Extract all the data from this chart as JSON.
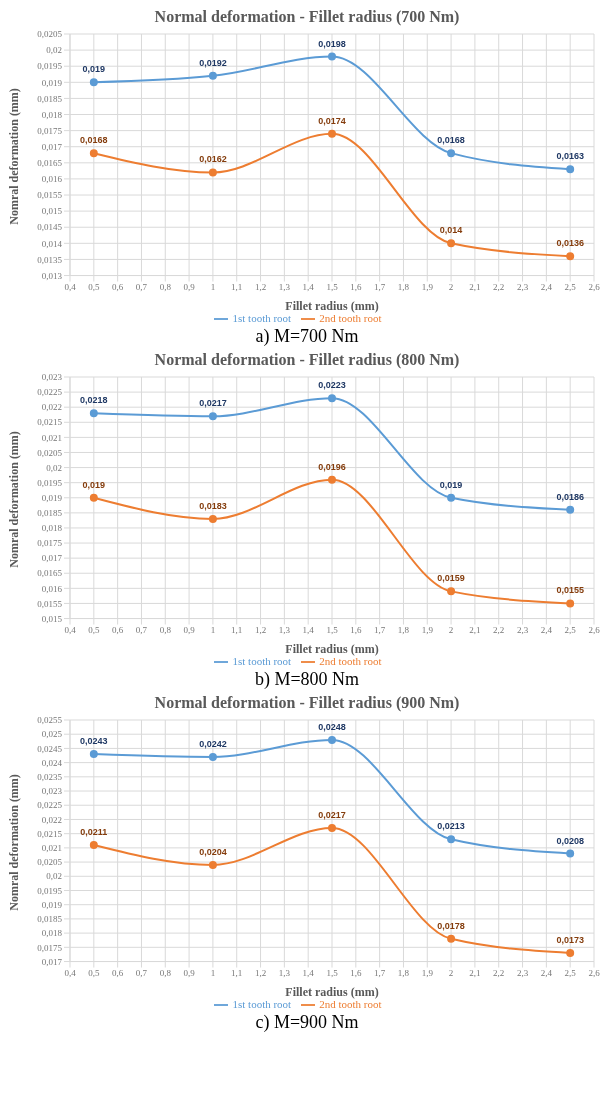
{
  "chart_data": [
    {
      "type": "line",
      "title": "Normal deformation - Fillet radius (700 Nm)",
      "xlabel": "Fillet radius (mm)",
      "ylabel": "Nomral deformation (mm)",
      "annotations": [
        "a) M=700 Nm"
      ],
      "x": [
        0.5,
        1,
        1.5,
        2,
        2.5
      ],
      "series": [
        {
          "name": "1st tooth root",
          "color": "#5b9bd5",
          "values": [
            0.019,
            0.0192,
            0.0198,
            0.0168,
            0.0163
          ],
          "value_labels": [
            "0,019",
            "0,0192",
            "0,0198",
            "0,0168",
            "0,0163"
          ]
        },
        {
          "name": "2nd tooth root",
          "color": "#ed7d31",
          "values": [
            0.0168,
            0.0162,
            0.0174,
            0.014,
            0.0136
          ],
          "value_labels": [
            "0,0168",
            "0,0162",
            "0,0174",
            "0,014",
            "0,0136"
          ]
        }
      ],
      "xlim": [
        0.4,
        2.6
      ],
      "xticks": [
        {
          "value": 0.4,
          "label": "0,4"
        },
        {
          "value": 0.5,
          "label": "0,5"
        },
        {
          "value": 0.6,
          "label": "0,6"
        },
        {
          "value": 0.7,
          "label": "0,7"
        },
        {
          "value": 0.8,
          "label": "0,8"
        },
        {
          "value": 0.9,
          "label": "0,9"
        },
        {
          "value": 1,
          "label": "1"
        },
        {
          "value": 1.1,
          "label": "1,1"
        },
        {
          "value": 1.2,
          "label": "1,2"
        },
        {
          "value": 1.3,
          "label": "1,3"
        },
        {
          "value": 1.4,
          "label": "1,4"
        },
        {
          "value": 1.5,
          "label": "1,5"
        },
        {
          "value": 1.6,
          "label": "1,6"
        },
        {
          "value": 1.7,
          "label": "1,7"
        },
        {
          "value": 1.8,
          "label": "1,8"
        },
        {
          "value": 1.9,
          "label": "1,9"
        },
        {
          "value": 2,
          "label": "2"
        },
        {
          "value": 2.1,
          "label": "2,1"
        },
        {
          "value": 2.2,
          "label": "2,2"
        },
        {
          "value": 2.3,
          "label": "2,3"
        },
        {
          "value": 2.4,
          "label": "2,4"
        },
        {
          "value": 2.5,
          "label": "2,5"
        },
        {
          "value": 2.6,
          "label": "2,6"
        }
      ],
      "ylim": [
        0.013,
        0.0205
      ],
      "yticks": [
        {
          "value": 0.013,
          "label": "0,013"
        },
        {
          "value": 0.0135,
          "label": "0,0135"
        },
        {
          "value": 0.014,
          "label": "0,014"
        },
        {
          "value": 0.0145,
          "label": "0,0145"
        },
        {
          "value": 0.015,
          "label": "0,015"
        },
        {
          "value": 0.0155,
          "label": "0,0155"
        },
        {
          "value": 0.016,
          "label": "0,016"
        },
        {
          "value": 0.0165,
          "label": "0,0165"
        },
        {
          "value": 0.017,
          "label": "0,017"
        },
        {
          "value": 0.0175,
          "label": "0,0175"
        },
        {
          "value": 0.018,
          "label": "0,018"
        },
        {
          "value": 0.0185,
          "label": "0,0185"
        },
        {
          "value": 0.019,
          "label": "0,019"
        },
        {
          "value": 0.0195,
          "label": "0,0195"
        },
        {
          "value": 0.02,
          "label": "0,02"
        },
        {
          "value": 0.0205,
          "label": "0,0205"
        }
      ],
      "grid": true,
      "legend": "bottom",
      "marker": "circle",
      "line_style": "solid"
    },
    {
      "type": "line",
      "title": "Normal deformation - Fillet radius (800 Nm)",
      "xlabel": "Fillet radius (mm)",
      "ylabel": "Nomral deformation (mm)",
      "annotations": [
        "b) M=800 Nm"
      ],
      "x": [
        0.5,
        1,
        1.5,
        2,
        2.5
      ],
      "series": [
        {
          "name": "1st tooth root",
          "color": "#5b9bd5",
          "values": [
            0.0218,
            0.0217,
            0.0223,
            0.019,
            0.0186
          ],
          "value_labels": [
            "0,0218",
            "0,0217",
            "0,0223",
            "0,019",
            "0,0186"
          ]
        },
        {
          "name": "2nd tooth root",
          "color": "#ed7d31",
          "values": [
            0.019,
            0.0183,
            0.0196,
            0.0159,
            0.0155
          ],
          "value_labels": [
            "0,019",
            "0,0183",
            "0,0196",
            "0,0159",
            "0,0155"
          ]
        }
      ],
      "xlim": [
        0.4,
        2.6
      ],
      "xticks": [
        {
          "value": 0.4,
          "label": "0,4"
        },
        {
          "value": 0.5,
          "label": "0,5"
        },
        {
          "value": 0.6,
          "label": "0,6"
        },
        {
          "value": 0.7,
          "label": "0,7"
        },
        {
          "value": 0.8,
          "label": "0,8"
        },
        {
          "value": 0.9,
          "label": "0,9"
        },
        {
          "value": 1,
          "label": "1"
        },
        {
          "value": 1.1,
          "label": "1,1"
        },
        {
          "value": 1.2,
          "label": "1,2"
        },
        {
          "value": 1.3,
          "label": "1,3"
        },
        {
          "value": 1.4,
          "label": "1,4"
        },
        {
          "value": 1.5,
          "label": "1,5"
        },
        {
          "value": 1.6,
          "label": "1,6"
        },
        {
          "value": 1.7,
          "label": "1,7"
        },
        {
          "value": 1.8,
          "label": "1,8"
        },
        {
          "value": 1.9,
          "label": "1,9"
        },
        {
          "value": 2,
          "label": "2"
        },
        {
          "value": 2.1,
          "label": "2,1"
        },
        {
          "value": 2.2,
          "label": "2,2"
        },
        {
          "value": 2.3,
          "label": "2,3"
        },
        {
          "value": 2.4,
          "label": "2,4"
        },
        {
          "value": 2.5,
          "label": "2,5"
        },
        {
          "value": 2.6,
          "label": "2,6"
        }
      ],
      "ylim": [
        0.015,
        0.023
      ],
      "yticks": [
        {
          "value": 0.015,
          "label": "0,015"
        },
        {
          "value": 0.0155,
          "label": "0,0155"
        },
        {
          "value": 0.016,
          "label": "0,016"
        },
        {
          "value": 0.0165,
          "label": "0,0165"
        },
        {
          "value": 0.017,
          "label": "0,017"
        },
        {
          "value": 0.0175,
          "label": "0,0175"
        },
        {
          "value": 0.018,
          "label": "0,018"
        },
        {
          "value": 0.0185,
          "label": "0,0185"
        },
        {
          "value": 0.019,
          "label": "0,019"
        },
        {
          "value": 0.0195,
          "label": "0,0195"
        },
        {
          "value": 0.02,
          "label": "0,02"
        },
        {
          "value": 0.0205,
          "label": "0,0205"
        },
        {
          "value": 0.021,
          "label": "0,021"
        },
        {
          "value": 0.0215,
          "label": "0,0215"
        },
        {
          "value": 0.022,
          "label": "0,022"
        },
        {
          "value": 0.0225,
          "label": "0,0225"
        },
        {
          "value": 0.023,
          "label": "0,023"
        }
      ],
      "grid": true,
      "legend": "bottom",
      "marker": "circle",
      "line_style": "solid"
    },
    {
      "type": "line",
      "title": "Normal deformation - Fillet radius (900 Nm)",
      "xlabel": "Fillet radius (mm)",
      "ylabel": "Nomral deformation (mm)",
      "annotations": [
        "c) M=900 Nm"
      ],
      "x": [
        0.5,
        1,
        1.5,
        2,
        2.5
      ],
      "series": [
        {
          "name": "1st tooth root",
          "color": "#5b9bd5",
          "values": [
            0.0243,
            0.0242,
            0.0248,
            0.0213,
            0.0208
          ],
          "value_labels": [
            "0,0243",
            "0,0242",
            "0,0248",
            "0,0213",
            "0,0208"
          ]
        },
        {
          "name": "2nd tooth root",
          "color": "#ed7d31",
          "values": [
            0.0211,
            0.0204,
            0.0217,
            0.0178,
            0.0173
          ],
          "value_labels": [
            "0,0211",
            "0,0204",
            "0,0217",
            "0,0178",
            "0,0173"
          ]
        }
      ],
      "xlim": [
        0.4,
        2.6
      ],
      "xticks": [
        {
          "value": 0.4,
          "label": "0,4"
        },
        {
          "value": 0.5,
          "label": "0,5"
        },
        {
          "value": 0.6,
          "label": "0,6"
        },
        {
          "value": 0.7,
          "label": "0,7"
        },
        {
          "value": 0.8,
          "label": "0,8"
        },
        {
          "value": 0.9,
          "label": "0,9"
        },
        {
          "value": 1,
          "label": "1"
        },
        {
          "value": 1.1,
          "label": "1,1"
        },
        {
          "value": 1.2,
          "label": "1,2"
        },
        {
          "value": 1.3,
          "label": "1,3"
        },
        {
          "value": 1.4,
          "label": "1,4"
        },
        {
          "value": 1.5,
          "label": "1,5"
        },
        {
          "value": 1.6,
          "label": "1,6"
        },
        {
          "value": 1.7,
          "label": "1,7"
        },
        {
          "value": 1.8,
          "label": "1,8"
        },
        {
          "value": 1.9,
          "label": "1,9"
        },
        {
          "value": 2,
          "label": "2"
        },
        {
          "value": 2.1,
          "label": "2,1"
        },
        {
          "value": 2.2,
          "label": "2,2"
        },
        {
          "value": 2.3,
          "label": "2,3"
        },
        {
          "value": 2.4,
          "label": "2,4"
        },
        {
          "value": 2.5,
          "label": "2,5"
        },
        {
          "value": 2.6,
          "label": "2,6"
        }
      ],
      "ylim": [
        0.017,
        0.0255
      ],
      "yticks": [
        {
          "value": 0.017,
          "label": "0,017"
        },
        {
          "value": 0.0175,
          "label": "0,0175"
        },
        {
          "value": 0.018,
          "label": "0,018"
        },
        {
          "value": 0.0185,
          "label": "0,0185"
        },
        {
          "value": 0.019,
          "label": "0,019"
        },
        {
          "value": 0.0195,
          "label": "0,0195"
        },
        {
          "value": 0.02,
          "label": "0,02"
        },
        {
          "value": 0.0205,
          "label": "0,0205"
        },
        {
          "value": 0.021,
          "label": "0,021"
        },
        {
          "value": 0.0215,
          "label": "0,0215"
        },
        {
          "value": 0.022,
          "label": "0,022"
        },
        {
          "value": 0.0225,
          "label": "0,0225"
        },
        {
          "value": 0.023,
          "label": "0,023"
        },
        {
          "value": 0.0235,
          "label": "0,0235"
        },
        {
          "value": 0.024,
          "label": "0,024"
        },
        {
          "value": 0.0245,
          "label": "0,0245"
        },
        {
          "value": 0.025,
          "label": "0,025"
        },
        {
          "value": 0.0255,
          "label": "0,0255"
        }
      ],
      "grid": true,
      "legend": "bottom",
      "marker": "circle",
      "line_style": "solid"
    }
  ]
}
